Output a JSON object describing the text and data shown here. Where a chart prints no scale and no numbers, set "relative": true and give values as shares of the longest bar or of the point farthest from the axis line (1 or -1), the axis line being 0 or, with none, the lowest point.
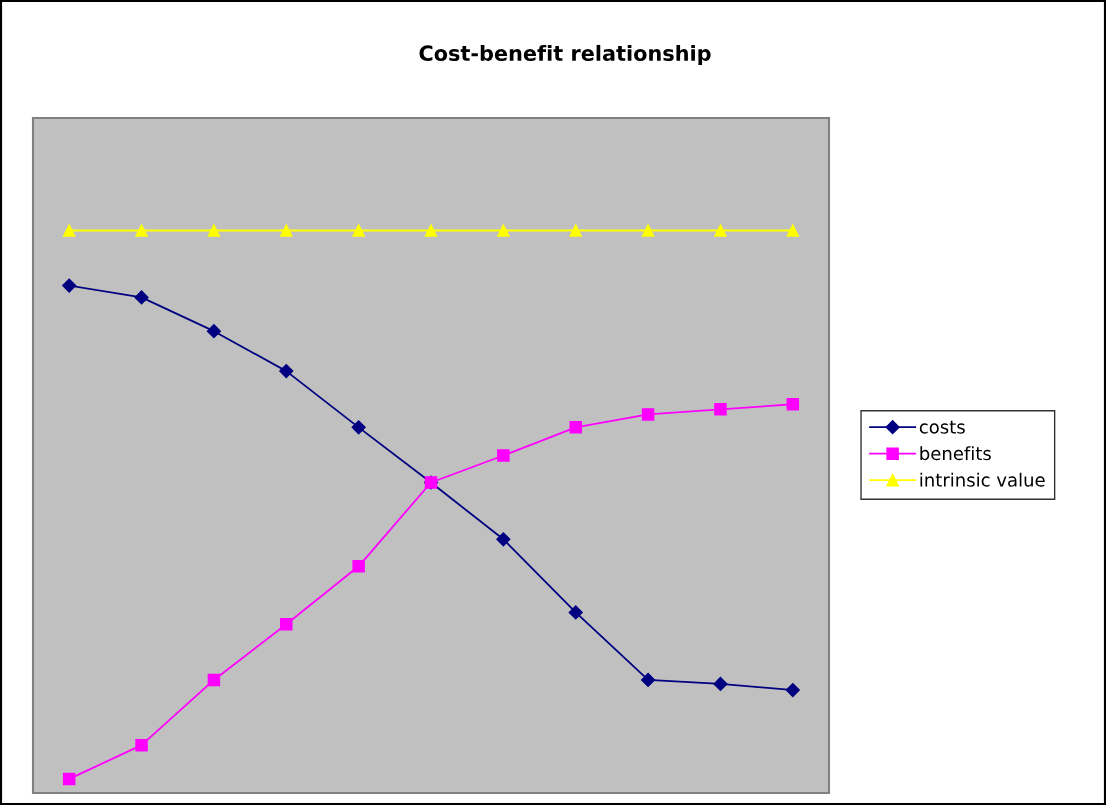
{
  "chart_data": {
    "type": "line",
    "title": "Cost-benefit relationship",
    "relative": true,
    "categories": [
      null,
      null,
      null,
      null,
      null,
      null,
      null,
      null,
      null,
      null,
      null
    ],
    "series": [
      {
        "name": "costs",
        "color": "#000080",
        "marker": "diamond",
        "values": [
          0.902,
          0.881,
          0.821,
          0.75,
          0.65,
          0.552,
          0.451,
          0.321,
          0.201,
          0.194,
          0.183
        ]
      },
      {
        "name": "benefits",
        "color": "#ff00ff",
        "marker": "square",
        "values": [
          0.025,
          0.085,
          0.201,
          0.3,
          0.403,
          0.552,
          0.6,
          0.65,
          0.673,
          0.682,
          0.691
        ]
      },
      {
        "name": "intrinsic value",
        "color": "#ffff00",
        "marker": "triangle",
        "values": [
          1,
          1,
          1,
          1,
          1,
          1,
          1,
          1,
          1,
          1,
          1
        ]
      }
    ],
    "legend": "right"
  }
}
